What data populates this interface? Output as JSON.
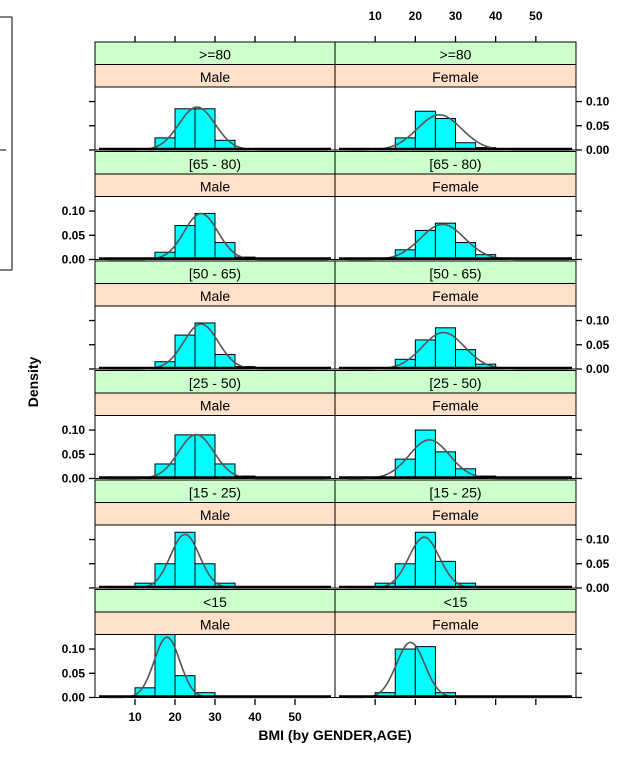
{
  "colors": {
    "age_strip": "#ccffcc",
    "gender_strip": "#ffe0c8",
    "bar_fill": "#00ffff",
    "density_curve": "#555555"
  },
  "chart_data": {
    "type": "bar",
    "subtype": "histogram-lattice",
    "title": "",
    "xlabel": "BMI (by GENDER,AGE)",
    "ylabel": "Density",
    "xlim": [
      0,
      60
    ],
    "ylim": [
      0,
      0.13
    ],
    "x_ticks": [
      10,
      20,
      30,
      40,
      50
    ],
    "y_ticks": [
      0.0,
      0.05,
      0.1
    ],
    "y_tick_labels": [
      "0.00",
      "0.05",
      "0.10"
    ],
    "grid": false,
    "columns": [
      "Male",
      "Female"
    ],
    "rows": [
      ">=80",
      "[65 - 80)",
      "[50 - 65)",
      "[25 - 50)",
      "[15 - 25)",
      "<15"
    ],
    "bin_edges": [
      10,
      15,
      20,
      25,
      30,
      35,
      40,
      45,
      50,
      55
    ],
    "panels": [
      {
        "age": ">=80",
        "gender": "Male",
        "densities": [
          0.002,
          0.025,
          0.085,
          0.085,
          0.02,
          0.003,
          0.001,
          0.0,
          0.0
        ],
        "curve_mean": 25.5,
        "curve_sd": 4.5
      },
      {
        "age": ">=80",
        "gender": "Female",
        "densities": [
          0.003,
          0.025,
          0.08,
          0.065,
          0.015,
          0.005,
          0.002,
          0.001,
          0.0
        ],
        "curve_mean": 26.0,
        "curve_sd": 5.5
      },
      {
        "age": "[65 - 80)",
        "gender": "Male",
        "densities": [
          0.0,
          0.015,
          0.07,
          0.095,
          0.035,
          0.005,
          0.002,
          0.0,
          0.0
        ],
        "curve_mean": 26.5,
        "curve_sd": 4.2
      },
      {
        "age": "[65 - 80)",
        "gender": "Female",
        "densities": [
          0.002,
          0.02,
          0.06,
          0.075,
          0.035,
          0.01,
          0.003,
          0.001,
          0.0
        ],
        "curve_mean": 26.8,
        "curve_sd": 5.5
      },
      {
        "age": "[50 - 65)",
        "gender": "Male",
        "densities": [
          0.0,
          0.015,
          0.07,
          0.095,
          0.03,
          0.005,
          0.001,
          0.0,
          0.0
        ],
        "curve_mean": 26.5,
        "curve_sd": 4.3
      },
      {
        "age": "[50 - 65)",
        "gender": "Female",
        "densities": [
          0.002,
          0.02,
          0.06,
          0.085,
          0.04,
          0.01,
          0.003,
          0.001,
          0.0
        ],
        "curve_mean": 27.0,
        "curve_sd": 5.3
      },
      {
        "age": "[25 - 50)",
        "gender": "Male",
        "densities": [
          0.002,
          0.03,
          0.09,
          0.09,
          0.03,
          0.005,
          0.001,
          0.0,
          0.0
        ],
        "curve_mean": 25.3,
        "curve_sd": 4.4
      },
      {
        "age": "[25 - 50)",
        "gender": "Female",
        "densities": [
          0.003,
          0.04,
          0.1,
          0.055,
          0.02,
          0.005,
          0.002,
          0.001,
          0.0
        ],
        "curve_mean": 23.5,
        "curve_sd": 5.0
      },
      {
        "age": "[15 - 25)",
        "gender": "Male",
        "densities": [
          0.01,
          0.05,
          0.115,
          0.05,
          0.01,
          0.002,
          0.0,
          0.0,
          0.0
        ],
        "curve_mean": 22.5,
        "curve_sd": 3.6
      },
      {
        "age": "[15 - 25)",
        "gender": "Female",
        "densities": [
          0.01,
          0.05,
          0.115,
          0.055,
          0.01,
          0.003,
          0.001,
          0.0,
          0.0
        ],
        "curve_mean": 22.2,
        "curve_sd": 3.8
      },
      {
        "age": "<15",
        "gender": "Male",
        "densities": [
          0.02,
          0.13,
          0.045,
          0.01,
          0.0,
          0.0,
          0.0,
          0.0,
          0.0
        ],
        "curve_mean": 18.0,
        "curve_sd": 3.2
      },
      {
        "age": "<15",
        "gender": "Female",
        "densities": [
          0.01,
          0.1,
          0.105,
          0.01,
          0.0,
          0.0,
          0.0,
          0.0,
          0.0
        ],
        "curve_mean": 18.8,
        "curve_sd": 3.5
      }
    ]
  }
}
